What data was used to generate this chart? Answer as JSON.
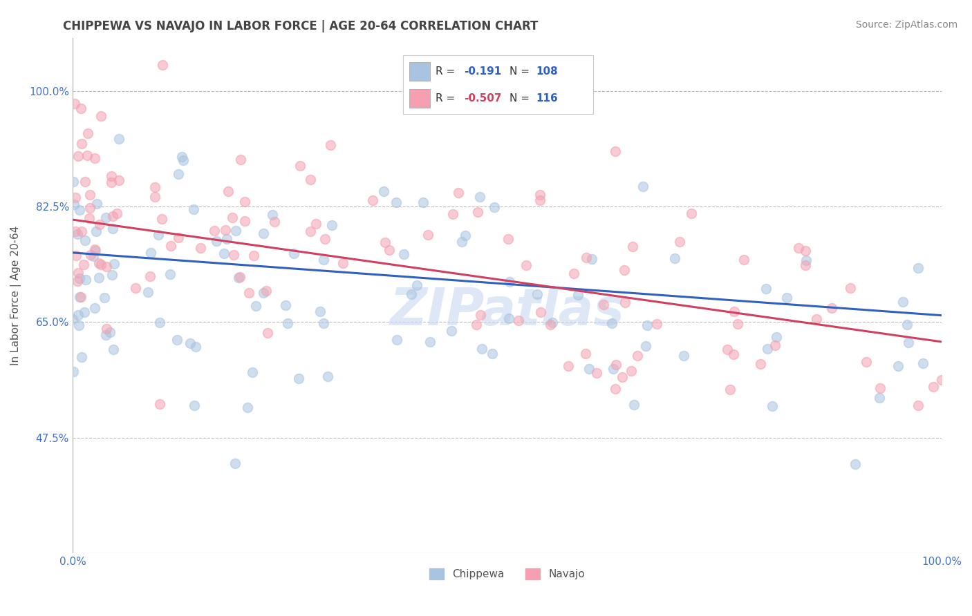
{
  "title": "CHIPPEWA VS NAVAJO IN LABOR FORCE | AGE 20-64 CORRELATION CHART",
  "source": "Source: ZipAtlas.com",
  "ylabel": "In Labor Force | Age 20-64",
  "xmin": 0.0,
  "xmax": 1.0,
  "ymin": 0.3,
  "ymax": 1.08,
  "yticks": [
    0.475,
    0.65,
    0.825,
    1.0
  ],
  "ytick_labels": [
    "47.5%",
    "65.0%",
    "82.5%",
    "100.0%"
  ],
  "xticks": [
    0.0,
    1.0
  ],
  "xtick_labels": [
    "0.0%",
    "100.0%"
  ],
  "chippewa_R": -0.191,
  "chippewa_N": 108,
  "navajo_R": -0.507,
  "navajo_N": 116,
  "chippewa_color": "#a8c4e0",
  "navajo_color": "#f4a0b0",
  "chippewa_line_color": "#3060c0",
  "navajo_line_color": "#d04060",
  "background_color": "#ffffff",
  "grid_color": "#bbbbbb",
  "watermark_color": "#c8d8f0",
  "title_color": "#444444",
  "label_color": "#4472c4",
  "chippewa_intercept": 0.755,
  "chippewa_slope": -0.095,
  "navajo_intercept": 0.805,
  "navajo_slope": -0.185,
  "dot_size": 100,
  "dot_alpha": 0.55,
  "seed": 12
}
